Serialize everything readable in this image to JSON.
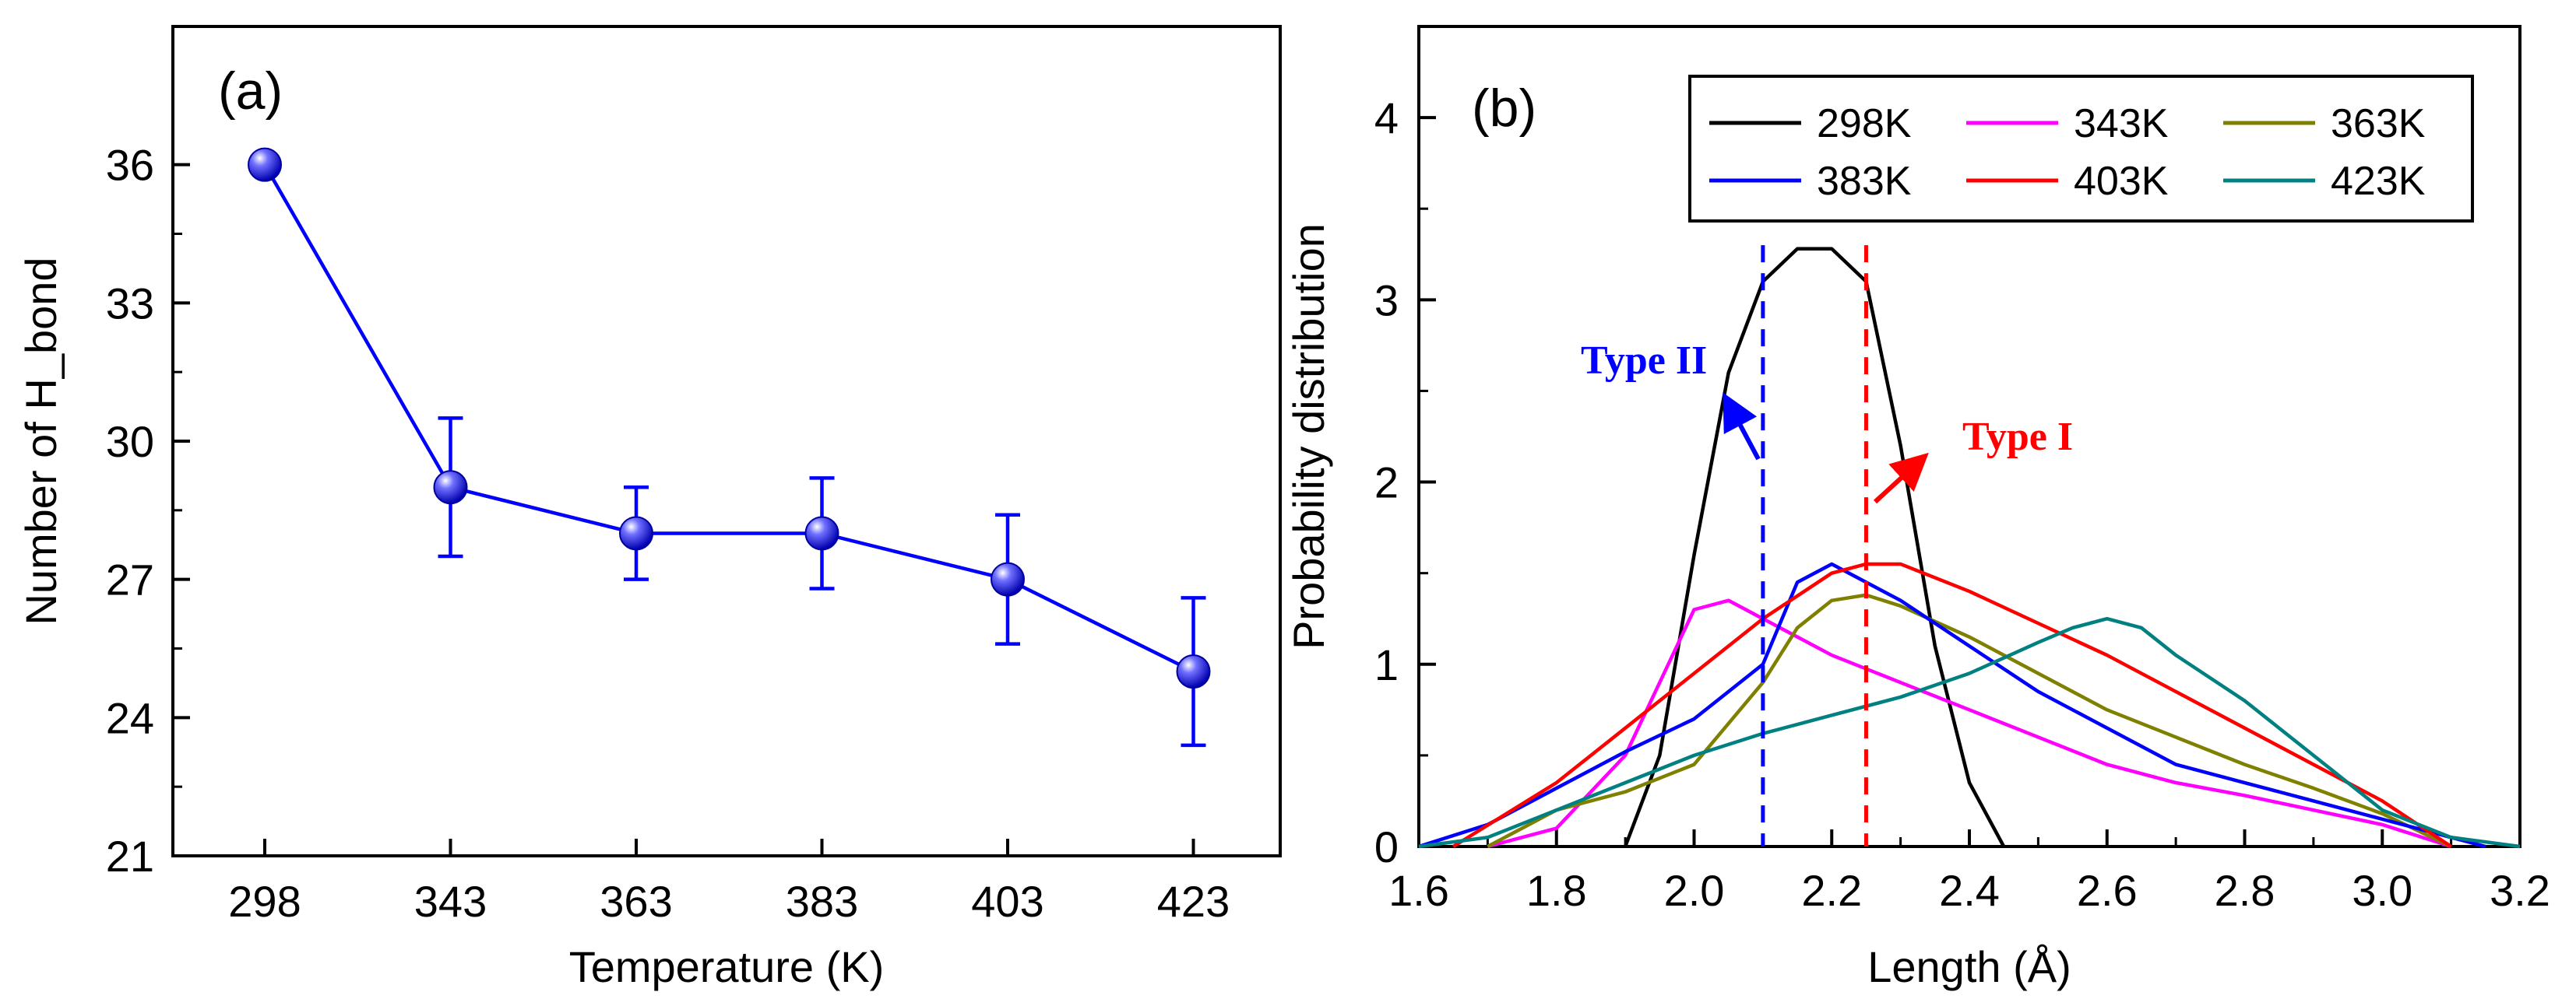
{
  "chart_data": [
    {
      "panel": "(a)",
      "type": "line",
      "xlabel": "Temperature (K)",
      "ylabel": "Number of H_bond",
      "ylim": [
        21,
        39
      ],
      "yticks": [
        21,
        24,
        27,
        30,
        33,
        36
      ],
      "categories": [
        "298",
        "343",
        "363",
        "383",
        "403",
        "423"
      ],
      "series": [
        {
          "name": "H_bond",
          "color": "#0000ff",
          "values": [
            36,
            29,
            28,
            28,
            27,
            25
          ],
          "errors": [
            0,
            1.5,
            1.0,
            1.2,
            1.4,
            1.6
          ]
        }
      ]
    },
    {
      "panel": "(b)",
      "type": "line",
      "xlabel": "Length (Å)",
      "ylabel": "Probability distribution",
      "xlim": [
        1.6,
        3.2
      ],
      "ylim": [
        0,
        4.5
      ],
      "xticks": [
        "1.6",
        "1.8",
        "2.0",
        "2.2",
        "2.4",
        "2.6",
        "2.8",
        "3.0",
        "3.2"
      ],
      "yticks": [
        "0",
        "1",
        "2",
        "3",
        "4"
      ],
      "series": [
        {
          "name": "298K",
          "color": "#000000",
          "x": [
            1.9,
            1.95,
            2.0,
            2.05,
            2.1,
            2.15,
            2.2,
            2.25,
            2.3,
            2.35,
            2.4,
            2.45
          ],
          "y": [
            0,
            0.5,
            1.6,
            2.6,
            3.1,
            3.28,
            3.28,
            3.1,
            2.2,
            1.1,
            0.35,
            0
          ]
        },
        {
          "name": "343K",
          "color": "#ff00ff",
          "x": [
            1.7,
            1.8,
            1.9,
            1.95,
            2.0,
            2.05,
            2.1,
            2.15,
            2.2,
            2.3,
            2.4,
            2.5,
            2.6,
            2.7,
            2.8,
            2.9,
            3.0,
            3.1
          ],
          "y": [
            0,
            0.1,
            0.5,
            0.9,
            1.3,
            1.35,
            1.25,
            1.15,
            1.05,
            0.9,
            0.75,
            0.6,
            0.45,
            0.35,
            0.28,
            0.2,
            0.12,
            0
          ]
        },
        {
          "name": "363K",
          "color": "#808000",
          "x": [
            1.7,
            1.8,
            1.9,
            2.0,
            2.1,
            2.15,
            2.2,
            2.25,
            2.3,
            2.4,
            2.5,
            2.6,
            2.7,
            2.8,
            2.9,
            3.0,
            3.1
          ],
          "y": [
            0,
            0.2,
            0.3,
            0.45,
            0.9,
            1.2,
            1.35,
            1.38,
            1.32,
            1.15,
            0.95,
            0.75,
            0.6,
            0.45,
            0.32,
            0.18,
            0
          ]
        },
        {
          "name": "383K",
          "color": "#0000ff",
          "x": [
            1.6,
            1.7,
            1.8,
            1.9,
            2.0,
            2.1,
            2.15,
            2.2,
            2.25,
            2.3,
            2.4,
            2.5,
            2.6,
            2.7,
            2.8,
            2.9,
            3.0,
            3.1,
            3.15
          ],
          "y": [
            0,
            0.12,
            0.32,
            0.52,
            0.7,
            1.0,
            1.45,
            1.55,
            1.45,
            1.35,
            1.1,
            0.85,
            0.65,
            0.45,
            0.35,
            0.25,
            0.15,
            0.05,
            0
          ]
        },
        {
          "name": "403K",
          "color": "#ff0000",
          "x": [
            1.65,
            1.8,
            2.0,
            2.1,
            2.2,
            2.25,
            2.3,
            2.4,
            2.6,
            2.8,
            3.0,
            3.1
          ],
          "y": [
            0,
            0.35,
            0.95,
            1.25,
            1.5,
            1.55,
            1.55,
            1.4,
            1.05,
            0.65,
            0.25,
            0
          ]
        },
        {
          "name": "423K",
          "color": "#008080",
          "x": [
            1.6,
            1.7,
            1.8,
            1.9,
            2.0,
            2.1,
            2.2,
            2.3,
            2.4,
            2.5,
            2.55,
            2.6,
            2.65,
            2.7,
            2.8,
            2.9,
            3.0,
            3.1,
            3.2
          ],
          "y": [
            0,
            0.05,
            0.2,
            0.35,
            0.5,
            0.62,
            0.72,
            0.82,
            0.95,
            1.12,
            1.2,
            1.25,
            1.2,
            1.05,
            0.8,
            0.5,
            0.2,
            0.05,
            0
          ]
        }
      ],
      "reference_lines": [
        {
          "label": "Type II",
          "x": 2.1,
          "color": "#0000ff",
          "style": "dashed"
        },
        {
          "label": "Type I",
          "x": 2.25,
          "color": "#ff0000",
          "style": "dashed"
        }
      ],
      "legend": "top-right"
    }
  ]
}
